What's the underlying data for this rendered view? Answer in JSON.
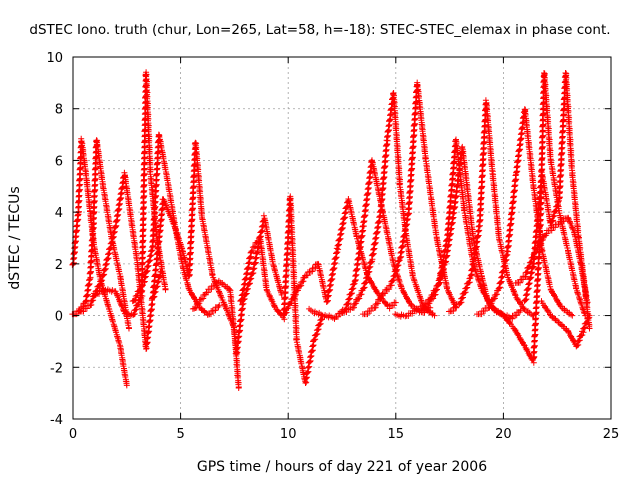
{
  "chart_data": {
    "type": "scatter",
    "title": "dSTEC Iono. truth (chur, Lon=265, Lat=58, h=-18): STEC-STEC_elemax in phase cont.",
    "xlabel": "GPS time / hours of day 221 of year 2006",
    "ylabel": "dSTEC  / TECUs",
    "xlim": [
      0,
      25
    ],
    "ylim": [
      -4,
      10
    ],
    "x_ticks": [
      "0",
      "5",
      "10",
      "15",
      "20",
      "25"
    ],
    "y_ticks": [
      "-4",
      "-2",
      "0",
      "2",
      "4",
      "6",
      "8",
      "10"
    ],
    "grid": true,
    "marker": "+",
    "series": [
      {
        "color": "#ff0000",
        "passes": [
          {
            "x": [
              0.0,
              0.25,
              0.4,
              0.6,
              0.8,
              1.0,
              1.3,
              1.7,
              2.2,
              2.5
            ],
            "y": [
              1.9,
              4.0,
              6.8,
              5.5,
              4.0,
              2.6,
              1.3,
              0.2,
              -1.2,
              -2.7
            ]
          },
          {
            "x": [
              0.0,
              0.3,
              0.6,
              0.8,
              0.95,
              1.1,
              1.4,
              1.8,
              2.2,
              2.6
            ],
            "y": [
              0.0,
              0.2,
              0.5,
              1.5,
              3.5,
              6.8,
              5.0,
              3.0,
              1.5,
              -0.5
            ]
          },
          {
            "x": [
              0.3,
              0.8,
              1.4,
              2.0,
              2.4,
              3.0,
              3.4,
              3.7,
              4.1
            ],
            "y": [
              0.1,
              0.4,
              1.5,
              3.5,
              5.5,
              2.0,
              -1.3,
              0.6,
              1.7
            ]
          },
          {
            "x": [
              1.0,
              1.5,
              2.0,
              2.4,
              2.8,
              3.2,
              3.4,
              3.6,
              3.9,
              4.3
            ],
            "y": [
              0.8,
              1.0,
              0.9,
              0.1,
              0.0,
              0.8,
              9.4,
              5.5,
              3.0,
              1.0
            ]
          },
          {
            "x": [
              2.8,
              3.3,
              3.7,
              4.0,
              4.4,
              4.8,
              5.1,
              5.4,
              5.9,
              6.3,
              6.8
            ],
            "y": [
              0.5,
              1.3,
              2.6,
              7.0,
              5.2,
              3.2,
              1.9,
              1.0,
              0.3,
              0.0,
              0.4
            ]
          },
          {
            "x": [
              3.7,
              4.2,
              4.7,
              5.1,
              5.4,
              5.7,
              6.0,
              6.5,
              7.0,
              7.5,
              7.7
            ],
            "y": [
              0.6,
              4.5,
              3.5,
              2.5,
              1.5,
              6.7,
              3.8,
              1.5,
              0.5,
              -0.5,
              -2.8
            ]
          },
          {
            "x": [
              5.6,
              6.2,
              6.8,
              7.3,
              7.6,
              7.9,
              8.4,
              8.9,
              9.3,
              9.7
            ],
            "y": [
              0.2,
              0.9,
              1.3,
              1.0,
              -1.5,
              0.5,
              1.8,
              3.8,
              2.0,
              0.8
            ]
          },
          {
            "x": [
              7.8,
              8.3,
              8.7,
              9.0,
              9.4,
              9.8,
              10.1,
              10.4,
              10.8,
              11.2,
              11.6
            ],
            "y": [
              0.5,
              2.5,
              3.0,
              1.0,
              0.3,
              -0.1,
              4.6,
              -1.0,
              -2.6,
              -1.0,
              0.0
            ]
          },
          {
            "x": [
              9.8,
              10.3,
              10.8,
              11.4,
              11.8,
              12.3,
              12.8,
              13.2,
              13.7,
              14.2,
              14.7,
              15.0
            ],
            "y": [
              0.0,
              0.8,
              1.5,
              2.0,
              0.5,
              2.6,
              4.5,
              3.0,
              1.5,
              0.8,
              0.3,
              0.5
            ]
          },
          {
            "x": [
              11.0,
              11.6,
              12.2,
              12.7,
              13.1,
              13.5,
              13.9,
              14.4,
              14.9,
              15.3,
              15.7,
              16.2,
              16.6
            ],
            "y": [
              0.2,
              0.0,
              -0.1,
              0.3,
              1.3,
              3.5,
              6.0,
              4.0,
              2.0,
              1.0,
              0.4,
              0.1,
              0.3
            ]
          },
          {
            "x": [
              12.5,
              13.0,
              13.5,
              13.9,
              14.3,
              14.6,
              14.9,
              15.2,
              15.5,
              15.8,
              16.3,
              16.8
            ],
            "y": [
              0.1,
              0.3,
              1.0,
              2.2,
              4.0,
              6.8,
              8.6,
              5.0,
              3.0,
              1.5,
              0.3,
              0.0
            ]
          },
          {
            "x": [
              13.5,
              14.0,
              14.4,
              14.8,
              15.2,
              15.6,
              16.0,
              16.4,
              16.9,
              17.4,
              17.8
            ],
            "y": [
              0.0,
              0.3,
              0.8,
              1.2,
              2.2,
              4.0,
              9.0,
              6.0,
              3.0,
              1.0,
              0.3
            ]
          },
          {
            "x": [
              15.0,
              15.5,
              16.0,
              16.5,
              17.0,
              17.4,
              17.8,
              18.2,
              18.6,
              19.0,
              19.5,
              20.0
            ],
            "y": [
              0.0,
              0.0,
              0.2,
              0.5,
              1.2,
              3.0,
              6.8,
              4.0,
              2.0,
              1.0,
              0.3,
              0.0
            ]
          },
          {
            "x": [
              16.3,
              16.8,
              17.3,
              17.7,
              18.1,
              18.6,
              19.0,
              19.3,
              19.6,
              20.0,
              20.4,
              20.8
            ],
            "y": [
              0.2,
              0.8,
              2.0,
              4.0,
              6.5,
              3.0,
              1.5,
              0.5,
              0.2,
              0.0,
              -0.1,
              0.2
            ]
          },
          {
            "x": [
              17.5,
              18.0,
              18.5,
              18.9,
              19.2,
              19.5,
              19.8,
              20.2,
              20.6,
              21.0,
              21.4
            ],
            "y": [
              0.1,
              0.5,
              1.5,
              3.5,
              8.3,
              5.5,
              3.0,
              1.5,
              0.7,
              0.2,
              0.0
            ]
          },
          {
            "x": [
              18.8,
              19.3,
              19.8,
              20.2,
              20.6,
              21.0,
              21.4,
              21.8,
              22.2,
              22.7,
              23.2
            ],
            "y": [
              0.0,
              0.3,
              1.0,
              2.5,
              5.5,
              8.0,
              5.0,
              2.5,
              1.0,
              0.3,
              0.0
            ]
          },
          {
            "x": [
              20.0,
              20.5,
              21.0,
              21.4,
              21.7,
              21.9,
              22.2,
              22.6,
              23.0,
              23.4,
              23.8
            ],
            "y": [
              0.0,
              -0.5,
              -1.2,
              -1.8,
              3.0,
              9.4,
              6.0,
              4.0,
              2.5,
              1.0,
              0.0
            ]
          },
          {
            "x": [
              21.0,
              21.4,
              21.8,
              22.2,
              22.6,
              22.9,
              23.2,
              23.5,
              23.8,
              24.0
            ],
            "y": [
              0.5,
              2.0,
              5.5,
              3.5,
              4.5,
              9.4,
              5.5,
              3.0,
              1.0,
              -0.5
            ]
          },
          {
            "x": [
              20.6,
              21.0,
              21.5,
              22.0,
              22.5,
              23.0,
              23.3,
              23.6,
              23.9
            ],
            "y": [
              1.2,
              1.5,
              2.5,
              3.2,
              3.5,
              3.8,
              3.2,
              2.0,
              0.5
            ]
          },
          {
            "x": [
              21.8,
              22.2,
              22.6,
              23.0,
              23.4,
              23.7,
              24.0
            ],
            "y": [
              0.5,
              0.0,
              -0.3,
              -0.6,
              -1.2,
              -0.6,
              0.0
            ]
          }
        ]
      }
    ]
  }
}
